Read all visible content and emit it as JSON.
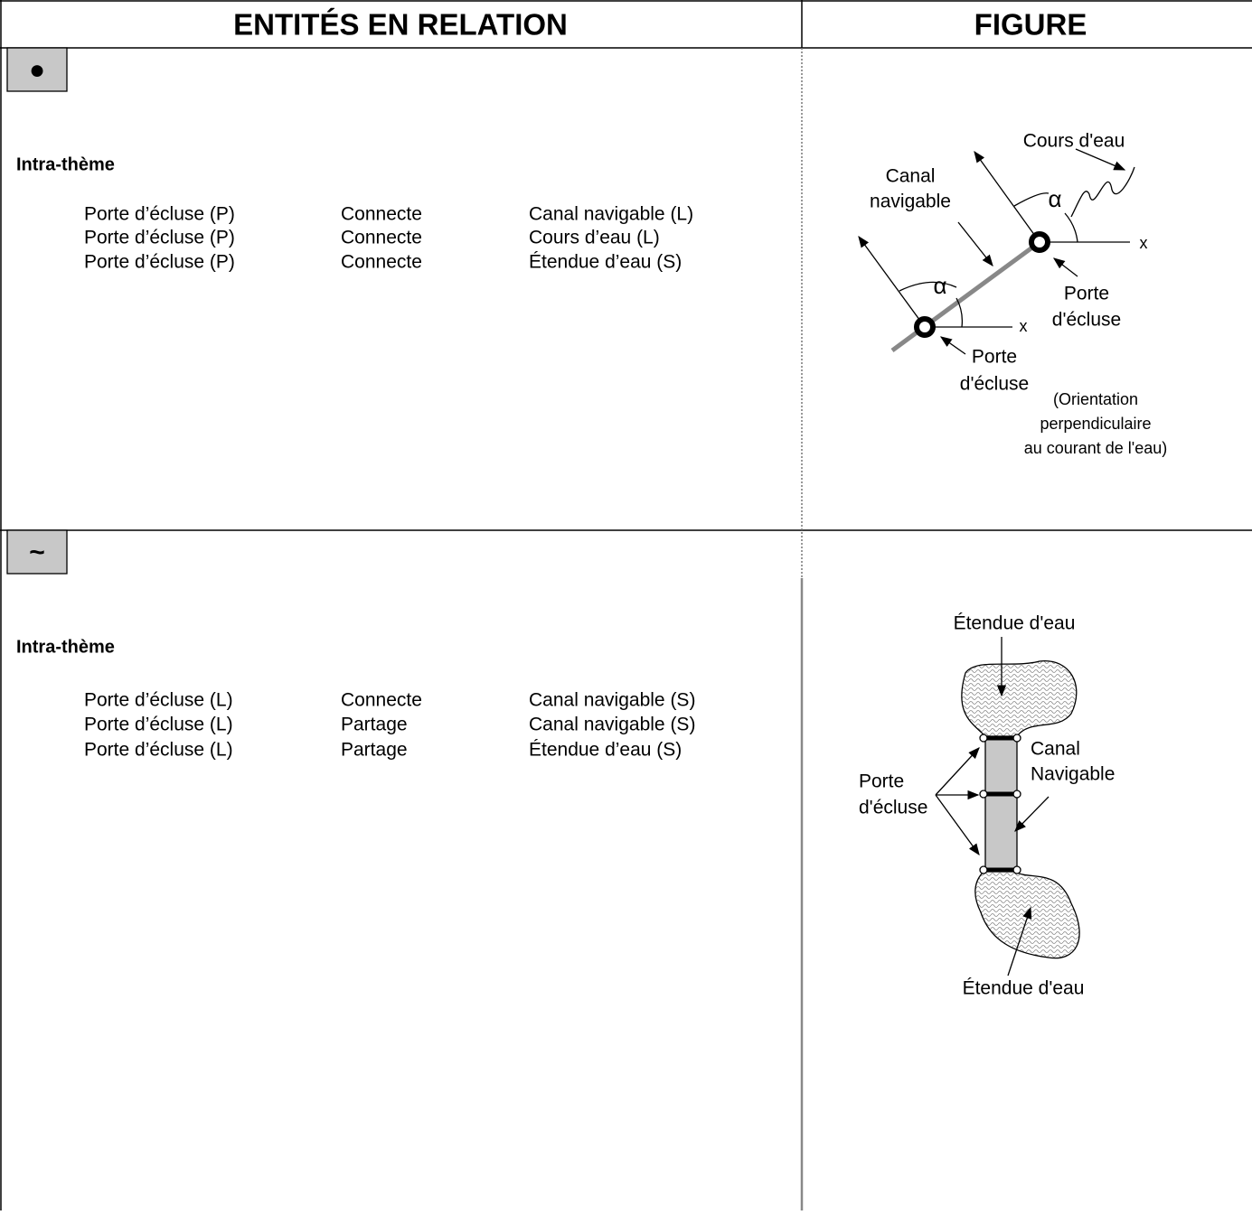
{
  "header": {
    "left": "ENTITÉS EN RELATION",
    "right": "FIGURE"
  },
  "rows": [
    {
      "symbol": "●",
      "section": "Intra-thème",
      "relations": [
        [
          "Porte d’écluse (P)",
          "Connecte",
          "Canal navigable (L)"
        ],
        [
          "Porte d’écluse (P)",
          "Connecte",
          "Cours d’eau (L)"
        ],
        [
          "Porte d’écluse (P)",
          "Connecte",
          "Étendue d’eau (S)"
        ]
      ],
      "figure": {
        "cours": "Cours d'eau",
        "canal": [
          "Canal",
          "navigable"
        ],
        "alpha": "α",
        "x": "x",
        "porte": [
          "Porte",
          "d'écluse"
        ],
        "note": [
          "(Orientation",
          "perpendiculaire",
          "au courant de l'eau)"
        ]
      }
    },
    {
      "symbol": "~",
      "section": "Intra-thème",
      "relations": [
        [
          "Porte d’écluse (L)",
          "Connecte",
          "Canal navigable (S)"
        ],
        [
          "Porte d’écluse (L)",
          "Partage",
          "Canal navigable (S)"
        ],
        [
          "Porte d’écluse (L)",
          "Partage",
          "Étendue d’eau (S)"
        ]
      ],
      "figure": {
        "etendue": "Étendue d'eau",
        "canal": [
          "Canal",
          "Navigable"
        ],
        "porte": [
          "Porte",
          "d'écluse"
        ]
      }
    }
  ]
}
